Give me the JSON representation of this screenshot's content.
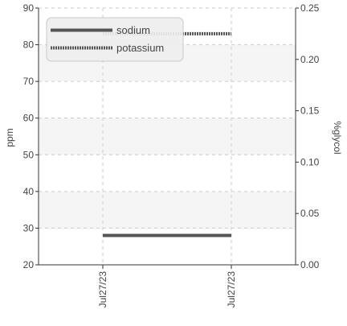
{
  "chart_data": {
    "type": "line",
    "x_categories": [
      "Jul27/23",
      "Jul27/23"
    ],
    "y_left": {
      "label": "ppm",
      "lim": [
        20,
        90
      ],
      "ticks": [
        20,
        30,
        40,
        50,
        60,
        70,
        80,
        90
      ]
    },
    "y_right": {
      "label": "%glycol",
      "lim": [
        0.0,
        0.25
      ],
      "ticks": [
        "0.00",
        "0.05",
        "0.10",
        "0.15",
        "0.20",
        "0.25"
      ]
    },
    "series": [
      {
        "name": "sodium",
        "axis": "left",
        "style": "solid",
        "color": "#555555",
        "values": [
          28,
          28
        ]
      },
      {
        "name": "potassium",
        "axis": "left",
        "style": "dotted",
        "color": "#555555",
        "values": [
          83,
          83
        ]
      }
    ],
    "legend_position": "top-left",
    "grid": "dashed",
    "bands": "alternating light grey"
  }
}
